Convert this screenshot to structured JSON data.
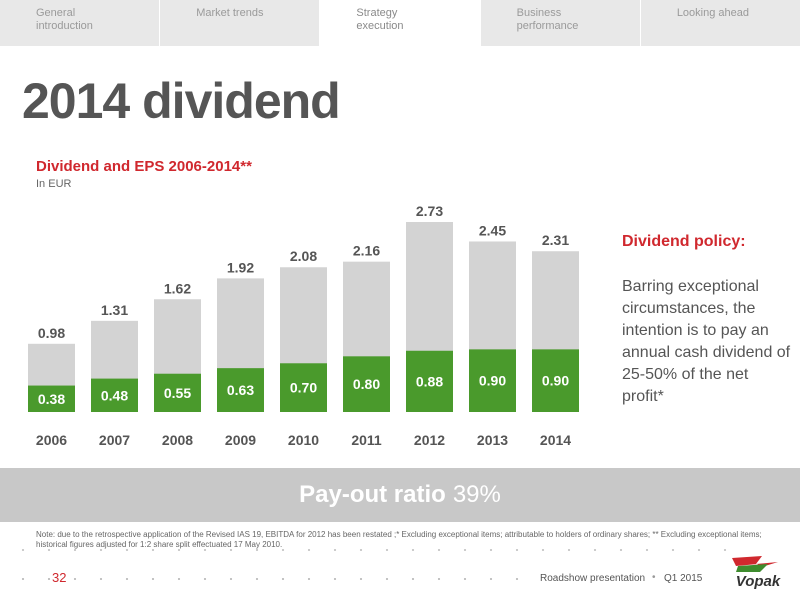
{
  "nav": {
    "tabs": [
      {
        "label": "General introduction",
        "active": false
      },
      {
        "label": "Market trends",
        "active": false
      },
      {
        "label": "Strategy execution",
        "active": true
      },
      {
        "label": "Business performance",
        "active": false
      },
      {
        "label": "Looking ahead",
        "active": false
      }
    ]
  },
  "page": {
    "title_bold": "2014",
    "title_rest": "dividend"
  },
  "chart_data": {
    "type": "bar",
    "title": "Dividend and EPS 2006-2014**",
    "subtitle": "In EUR",
    "categories": [
      "2006",
      "2007",
      "2008",
      "2009",
      "2010",
      "2011",
      "2012",
      "2013",
      "2014"
    ],
    "series": [
      {
        "values": [
          0.98,
          1.31,
          1.62,
          1.92,
          2.08,
          2.16,
          2.73,
          2.45,
          2.31
        ],
        "color": "#d3d3d3"
      },
      {
        "values": [
          0.38,
          0.48,
          0.55,
          0.63,
          0.7,
          0.8,
          0.88,
          0.9,
          0.9
        ],
        "color": "#4a9a2c"
      }
    ],
    "ylim": [
      0,
      2.73
    ],
    "grid": false,
    "legend": "none"
  },
  "policy": {
    "title": "Dividend policy:",
    "text": "Barring exceptional circumstances, the intention is to pay an annual cash dividend of 25-50% of the net profit*"
  },
  "band": {
    "label_bold": "Pay-out ratio",
    "value": "39%"
  },
  "note": "Note: due to the retrospective application of the Revised IAS 19, EBITDA for 2012 has been restated ;*  Excluding exceptional items; attributable to holders of ordinary shares; ** Excluding exceptional items; historical figures adjusted for 1:2 share split effectuated 17 May 2010.",
  "footer": {
    "page_number": "32",
    "label": "Roadshow presentation",
    "separator": "•",
    "date": "Q1 2015",
    "logo_text": "Vopak"
  },
  "colors": {
    "accent": "#d0282e",
    "bar_grey": "#d3d3d3",
    "bar_green": "#4a9a2c"
  }
}
